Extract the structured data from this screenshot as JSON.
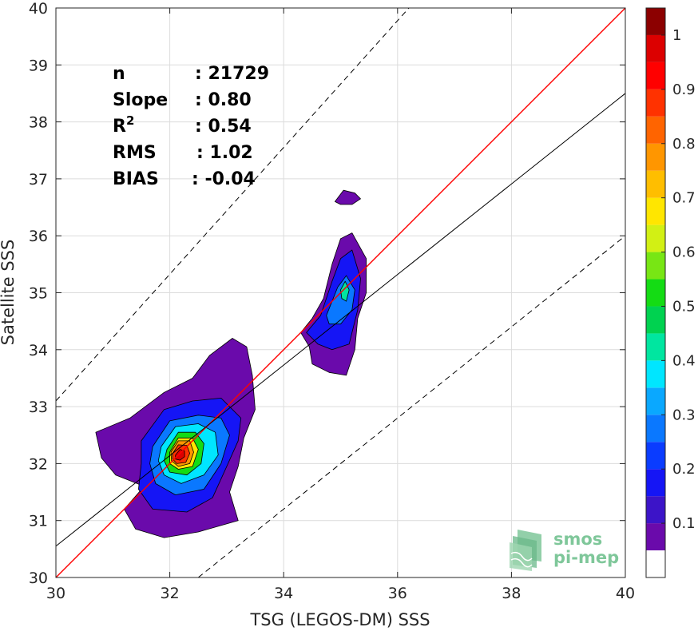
{
  "chart_data": {
    "type": "heatmap",
    "subtype": "density-contour-scatter",
    "title": "",
    "xlabel": "TSG (LEGOS-DM) SSS",
    "ylabel": "Satellite SSS",
    "xlim": [
      30,
      40
    ],
    "ylim": [
      30,
      40
    ],
    "xticks": [
      30,
      32,
      34,
      36,
      38,
      40
    ],
    "yticks": [
      30,
      31,
      32,
      33,
      34,
      35,
      36,
      37,
      38,
      39,
      40
    ],
    "grid": true,
    "stats": [
      {
        "label": "n",
        "sep": ": ",
        "value": "21729"
      },
      {
        "label": "Slope",
        "sep": ": ",
        "value": "0.80"
      },
      {
        "label": "R",
        "sup": "2",
        "sep": ": ",
        "value": "0.54"
      },
      {
        "label": "RMS",
        "sep": ": ",
        "value": "1.02"
      },
      {
        "label": "BIAS",
        "sep": ": ",
        "value": "-0.04"
      }
    ],
    "lines": [
      {
        "name": "identity",
        "color": "#ff0000",
        "style": "solid",
        "x": [
          30,
          40
        ],
        "y": [
          30,
          40
        ]
      },
      {
        "name": "regression",
        "color": "#000000",
        "style": "solid",
        "x": [
          30,
          40
        ],
        "y": [
          30.55,
          38.5
        ]
      },
      {
        "name": "upper",
        "color": "#000000",
        "style": "dashed",
        "x": [
          30,
          36.2
        ],
        "y": [
          33.1,
          40
        ]
      },
      {
        "name": "lower",
        "color": "#000000",
        "style": "dashed",
        "x": [
          32.5,
          40
        ],
        "y": [
          30,
          36.0
        ]
      }
    ],
    "clusters": [
      {
        "cx": 32.3,
        "cy": 32.45,
        "levels": [
          {
            "v": 0.05,
            "pts": [
              [
                30.7,
                32.55
              ],
              [
                31.3,
                32.8
              ],
              [
                31.9,
                33.25
              ],
              [
                32.4,
                33.5
              ],
              [
                32.7,
                33.9
              ],
              [
                33.1,
                34.2
              ],
              [
                33.35,
                34.05
              ],
              [
                33.45,
                33.55
              ],
              [
                33.5,
                32.95
              ],
              [
                33.3,
                32.45
              ],
              [
                33.2,
                31.95
              ],
              [
                33.05,
                31.5
              ],
              [
                33.2,
                31.0
              ],
              [
                32.5,
                30.8
              ],
              [
                31.9,
                30.7
              ],
              [
                31.4,
                30.85
              ],
              [
                31.2,
                31.2
              ],
              [
                31.55,
                31.6
              ],
              [
                31.05,
                31.8
              ],
              [
                30.8,
                32.1
              ]
            ]
          },
          {
            "v": 0.15,
            "pts": [
              [
                31.5,
                32.4
              ],
              [
                31.9,
                32.95
              ],
              [
                32.4,
                33.1
              ],
              [
                32.9,
                33.15
              ],
              [
                33.25,
                32.8
              ],
              [
                33.2,
                32.4
              ],
              [
                33.0,
                31.95
              ],
              [
                32.75,
                31.4
              ],
              [
                32.3,
                31.15
              ],
              [
                31.7,
                31.2
              ],
              [
                31.45,
                31.55
              ],
              [
                31.5,
                32.0
              ]
            ]
          },
          {
            "v": 0.25,
            "pts": [
              [
                31.7,
                32.3
              ],
              [
                32.0,
                32.75
              ],
              [
                32.5,
                32.85
              ],
              [
                32.9,
                32.8
              ],
              [
                33.05,
                32.5
              ],
              [
                32.9,
                32.0
              ],
              [
                32.6,
                31.55
              ],
              [
                32.1,
                31.45
              ],
              [
                31.75,
                31.65
              ],
              [
                31.65,
                32.0
              ]
            ]
          },
          {
            "v": 0.35,
            "pts": [
              [
                31.85,
                32.3
              ],
              [
                32.1,
                32.65
              ],
              [
                32.5,
                32.7
              ],
              [
                32.8,
                32.55
              ],
              [
                32.85,
                32.15
              ],
              [
                32.6,
                31.8
              ],
              [
                32.2,
                31.65
              ],
              [
                31.9,
                31.8
              ],
              [
                31.8,
                32.05
              ]
            ]
          },
          {
            "v": 0.5,
            "pts": [
              [
                31.95,
                32.25
              ],
              [
                32.15,
                32.55
              ],
              [
                32.45,
                32.55
              ],
              [
                32.6,
                32.35
              ],
              [
                32.55,
                32.0
              ],
              [
                32.3,
                31.8
              ],
              [
                32.0,
                31.85
              ],
              [
                31.9,
                32.05
              ]
            ]
          },
          {
            "v": 0.65,
            "pts": [
              [
                32.0,
                32.2
              ],
              [
                32.15,
                32.45
              ],
              [
                32.4,
                32.45
              ],
              [
                32.5,
                32.25
              ],
              [
                32.4,
                31.95
              ],
              [
                32.15,
                31.9
              ],
              [
                32.0,
                32.0
              ]
            ]
          },
          {
            "v": 0.75,
            "pts": [
              [
                32.02,
                32.2
              ],
              [
                32.15,
                32.4
              ],
              [
                32.35,
                32.4
              ],
              [
                32.42,
                32.2
              ],
              [
                32.35,
                32.0
              ],
              [
                32.15,
                31.95
              ],
              [
                32.03,
                32.05
              ]
            ]
          },
          {
            "v": 0.85,
            "pts": [
              [
                32.05,
                32.18
              ],
              [
                32.15,
                32.33
              ],
              [
                32.3,
                32.32
              ],
              [
                32.35,
                32.18
              ],
              [
                32.28,
                32.02
              ],
              [
                32.12,
                32.0
              ],
              [
                32.05,
                32.08
              ]
            ]
          },
          {
            "v": 0.95,
            "pts": [
              [
                32.1,
                32.15
              ],
              [
                32.18,
                32.25
              ],
              [
                32.26,
                32.22
              ],
              [
                32.26,
                32.12
              ],
              [
                32.18,
                32.06
              ],
              [
                32.1,
                32.08
              ]
            ]
          }
        ]
      },
      {
        "cx": 35.0,
        "cy": 35.0,
        "levels": [
          {
            "v": 0.05,
            "pts": [
              [
                34.3,
                34.3
              ],
              [
                34.5,
                34.55
              ],
              [
                34.7,
                34.9
              ],
              [
                34.85,
                35.5
              ],
              [
                35.0,
                35.95
              ],
              [
                35.2,
                36.05
              ],
              [
                35.45,
                35.6
              ],
              [
                35.45,
                35.0
              ],
              [
                35.3,
                34.55
              ],
              [
                35.25,
                34.0
              ],
              [
                35.1,
                33.55
              ],
              [
                34.8,
                33.6
              ],
              [
                34.5,
                33.75
              ],
              [
                34.45,
                34.05
              ]
            ]
          },
          {
            "v": 0.15,
            "pts": [
              [
                34.4,
                34.3
              ],
              [
                34.65,
                34.6
              ],
              [
                34.85,
                35.2
              ],
              [
                35.0,
                35.6
              ],
              [
                35.2,
                35.75
              ],
              [
                35.35,
                35.25
              ],
              [
                35.3,
                34.7
              ],
              [
                35.15,
                34.1
              ],
              [
                34.85,
                34.0
              ],
              [
                34.6,
                34.1
              ]
            ]
          },
          {
            "v": 0.25,
            "pts": [
              [
                34.75,
                34.6
              ],
              [
                34.95,
                35.1
              ],
              [
                35.1,
                35.3
              ],
              [
                35.25,
                35.05
              ],
              [
                35.2,
                34.7
              ],
              [
                35.0,
                34.45
              ],
              [
                34.8,
                34.45
              ]
            ]
          },
          {
            "v": 0.4,
            "pts": [
              [
                35.0,
                35.05
              ],
              [
                35.08,
                35.2
              ],
              [
                35.15,
                35.05
              ],
              [
                35.1,
                34.85
              ],
              [
                35.02,
                34.9
              ]
            ]
          }
        ]
      },
      {
        "cx": 35.15,
        "cy": 36.65,
        "levels": [
          {
            "v": 0.05,
            "pts": [
              [
                34.9,
                36.6
              ],
              [
                35.05,
                36.8
              ],
              [
                35.25,
                36.75
              ],
              [
                35.35,
                36.65
              ],
              [
                35.2,
                36.55
              ],
              [
                35.0,
                36.55
              ]
            ]
          }
        ]
      }
    ],
    "colorbar": {
      "ticks": [
        0.1,
        0.2,
        0.3,
        0.4,
        0.5,
        0.6,
        0.7,
        0.8,
        0.9,
        1
      ],
      "tick_labels": [
        "0.1",
        "0.2",
        "0.3",
        "0.4",
        "0.5",
        "0.6",
        "0.7",
        "0.8",
        "0.9",
        "1"
      ],
      "range": [
        0,
        1
      ],
      "bins": [
        {
          "from": 0.0,
          "to": 0.05,
          "color": "#ffffff"
        },
        {
          "from": 0.05,
          "to": 0.1,
          "color": "#6a0aab"
        },
        {
          "from": 0.1,
          "to": 0.15,
          "color": "#3c14c8"
        },
        {
          "from": 0.15,
          "to": 0.2,
          "color": "#1515f5"
        },
        {
          "from": 0.2,
          "to": 0.25,
          "color": "#0a3cff"
        },
        {
          "from": 0.25,
          "to": 0.3,
          "color": "#0a78ff"
        },
        {
          "from": 0.3,
          "to": 0.35,
          "color": "#0aa8ff"
        },
        {
          "from": 0.35,
          "to": 0.4,
          "color": "#00e6ff"
        },
        {
          "from": 0.4,
          "to": 0.45,
          "color": "#00e6a0"
        },
        {
          "from": 0.45,
          "to": 0.5,
          "color": "#00d250"
        },
        {
          "from": 0.5,
          "to": 0.55,
          "color": "#14dc14"
        },
        {
          "from": 0.55,
          "to": 0.6,
          "color": "#78e614"
        },
        {
          "from": 0.6,
          "to": 0.65,
          "color": "#d2f014"
        },
        {
          "from": 0.65,
          "to": 0.7,
          "color": "#ffe600"
        },
        {
          "from": 0.7,
          "to": 0.75,
          "color": "#ffbe00"
        },
        {
          "from": 0.75,
          "to": 0.8,
          "color": "#ff9600"
        },
        {
          "from": 0.8,
          "to": 0.85,
          "color": "#ff6400"
        },
        {
          "from": 0.85,
          "to": 0.9,
          "color": "#ff3200"
        },
        {
          "from": 0.9,
          "to": 0.95,
          "color": "#ff0000"
        },
        {
          "from": 0.95,
          "to": 1.0,
          "color": "#dc0000"
        },
        {
          "from": 1.0,
          "to": 1.05,
          "color": "#8c0000"
        }
      ]
    }
  },
  "logo": {
    "line1": "smos",
    "line2": "pi-mep"
  }
}
